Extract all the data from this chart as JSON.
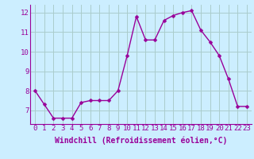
{
  "x": [
    0,
    1,
    2,
    3,
    4,
    5,
    6,
    7,
    8,
    9,
    10,
    11,
    12,
    13,
    14,
    15,
    16,
    17,
    18,
    19,
    20,
    21,
    22,
    23
  ],
  "y": [
    8.0,
    7.3,
    6.6,
    6.6,
    6.6,
    7.4,
    7.5,
    7.5,
    7.5,
    8.0,
    9.8,
    11.8,
    10.6,
    10.6,
    11.6,
    11.85,
    12.0,
    12.1,
    11.1,
    10.5,
    9.8,
    8.6,
    7.2,
    7.2
  ],
  "line_color": "#990099",
  "marker_color": "#990099",
  "bg_color": "#cceeff",
  "grid_color": "#aacccc",
  "xlabel": "Windchill (Refroidissement éolien,°C)",
  "ylim": [
    6.3,
    12.4
  ],
  "xlim": [
    -0.5,
    23.5
  ],
  "yticks": [
    7,
    8,
    9,
    10,
    11,
    12
  ],
  "xticks": [
    0,
    1,
    2,
    3,
    4,
    5,
    6,
    7,
    8,
    9,
    10,
    11,
    12,
    13,
    14,
    15,
    16,
    17,
    18,
    19,
    20,
    21,
    22,
    23
  ],
  "xlabel_fontsize": 7.0,
  "tick_fontsize": 6.5,
  "line_width": 1.0,
  "marker_size": 2.5
}
